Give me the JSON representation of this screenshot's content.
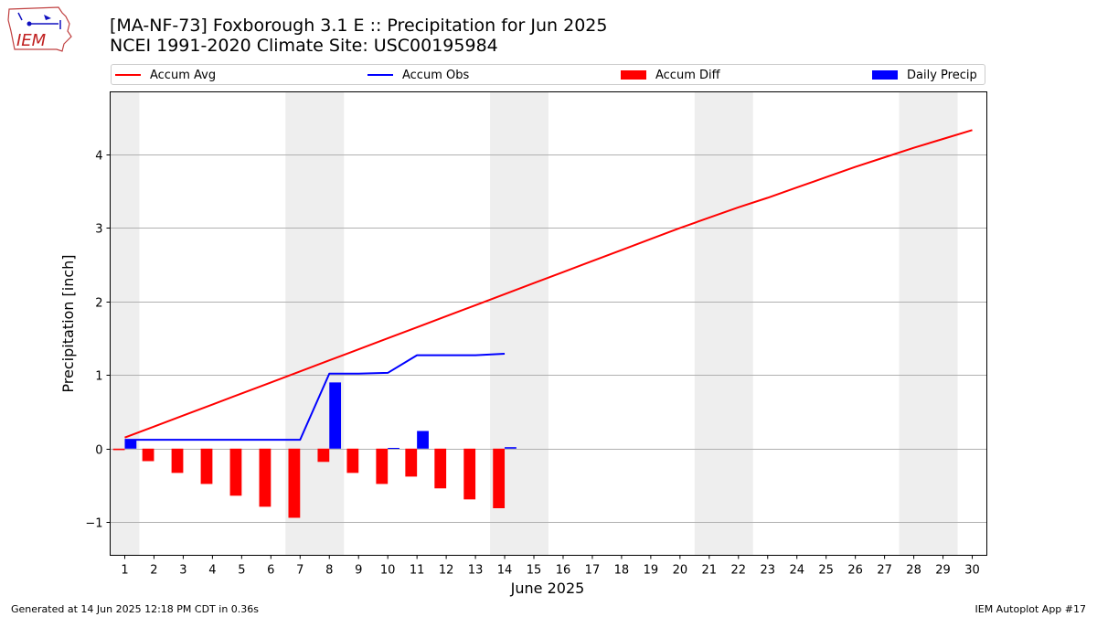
{
  "header": {
    "title_line1": "[MA-NF-73] Foxborough 3.1 E :: Precipitation for Jun 2025",
    "title_line2": "NCEI 1991-2020 Climate Site: USC00195984"
  },
  "logo": {
    "text": "IEM",
    "icon": "iowa-state-outline-weather-icon"
  },
  "footer": {
    "generated": "Generated at 14 Jun 2025 12:18 PM CDT in 0.36s",
    "app": "IEM Autoplot App #17"
  },
  "colors": {
    "accum_avg": "#ff0000",
    "accum_obs": "#0000ff",
    "accum_diff": "#ff0000",
    "daily_precip": "#0000ff",
    "weekend_shade": "#eeeeee",
    "grid": "#b0b0b0"
  },
  "chart_data": {
    "type": "bar",
    "title": "[MA-NF-73] Foxborough 3.1 E :: Precipitation for Jun 2025",
    "subtitle": "NCEI 1991-2020 Climate Site: USC00195984",
    "xlabel": "June 2025",
    "ylabel": "Precipitation [inch]",
    "xlim": [
      0.5,
      30.5
    ],
    "ylim": [
      -1.45,
      4.85
    ],
    "yticks": [
      -1,
      0,
      1,
      2,
      3,
      4
    ],
    "ytick_labels": [
      "−1",
      "0",
      "1",
      "2",
      "3",
      "4"
    ],
    "x": [
      1,
      2,
      3,
      4,
      5,
      6,
      7,
      8,
      9,
      10,
      11,
      12,
      13,
      14,
      15,
      16,
      17,
      18,
      19,
      20,
      21,
      22,
      23,
      24,
      25,
      26,
      27,
      28,
      29,
      30
    ],
    "xtick_labels": [
      "1",
      "2",
      "3",
      "4",
      "5",
      "6",
      "7",
      "8",
      "9",
      "10",
      "11",
      "12",
      "13",
      "14",
      "15",
      "16",
      "17",
      "18",
      "19",
      "20",
      "21",
      "22",
      "23",
      "24",
      "25",
      "26",
      "27",
      "28",
      "29",
      "30"
    ],
    "weekend_shading": [
      [
        0.5,
        1.5
      ],
      [
        6.5,
        8.5
      ],
      [
        13.5,
        15.5
      ],
      [
        20.5,
        22.5
      ],
      [
        27.5,
        29.5
      ]
    ],
    "grid": "horizontal",
    "legend_placement": "top, above plot",
    "series": [
      {
        "name": "Accum Avg",
        "kind": "line",
        "color": "#ff0000",
        "x": [
          1,
          2,
          3,
          4,
          5,
          6,
          7,
          8,
          9,
          10,
          11,
          12,
          13,
          14,
          15,
          16,
          17,
          18,
          19,
          20,
          21,
          22,
          23,
          24,
          25,
          26,
          27,
          28,
          29,
          30
        ],
        "values": [
          0.15,
          0.3,
          0.45,
          0.6,
          0.75,
          0.9,
          1.05,
          1.2,
          1.35,
          1.5,
          1.65,
          1.8,
          1.95,
          2.1,
          2.25,
          2.4,
          2.55,
          2.7,
          2.85,
          3.0,
          3.14,
          3.28,
          3.41,
          3.55,
          3.69,
          3.83,
          3.96,
          4.09,
          4.21,
          4.33
        ]
      },
      {
        "name": "Accum Obs",
        "kind": "line",
        "color": "#0000ff",
        "x": [
          1,
          2,
          3,
          4,
          5,
          6,
          7,
          8,
          9,
          10,
          11,
          12,
          13,
          14
        ],
        "values": [
          0.12,
          0.12,
          0.12,
          0.12,
          0.12,
          0.12,
          0.12,
          1.02,
          1.02,
          1.03,
          1.27,
          1.27,
          1.27,
          1.29
        ]
      },
      {
        "name": "Accum Diff",
        "kind": "bar",
        "color": "#ff0000",
        "offset": -0.2,
        "x": [
          1,
          2,
          3,
          4,
          5,
          6,
          7,
          8,
          9,
          10,
          11,
          12,
          13,
          14
        ],
        "values": [
          -0.02,
          -0.17,
          -0.33,
          -0.48,
          -0.64,
          -0.79,
          -0.94,
          -0.18,
          -0.33,
          -0.48,
          -0.38,
          -0.54,
          -0.69,
          -0.81
        ]
      },
      {
        "name": "Daily Precip",
        "kind": "bar",
        "color": "#0000ff",
        "offset": 0.2,
        "x": [
          1,
          2,
          3,
          4,
          5,
          6,
          7,
          8,
          9,
          10,
          11,
          12,
          13,
          14
        ],
        "values": [
          0.12,
          0,
          0,
          0,
          0,
          0,
          0,
          0.9,
          0,
          0.01,
          0.24,
          0,
          0,
          0.02
        ]
      }
    ]
  }
}
